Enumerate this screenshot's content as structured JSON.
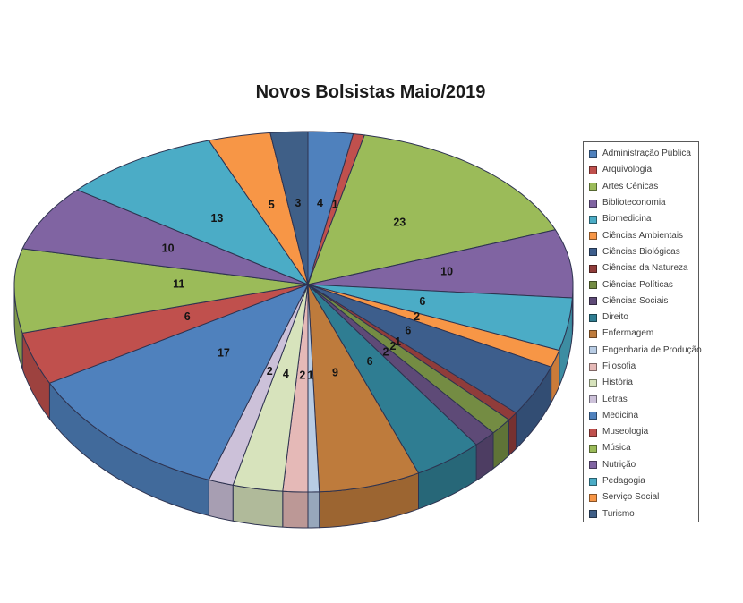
{
  "title": "Novos Bolsistas Maio/2019",
  "chart_data": {
    "type": "pie",
    "style": "3d-pie",
    "title": "Novos Bolsistas Maio/2019",
    "total": 146,
    "start_angle_deg": 0,
    "direction": "clockwise",
    "data_labels": "values",
    "legend_position": "right",
    "categories": [
      "Administração Pública",
      "Arquivologia",
      "Artes Cênicas",
      "Biblioteconomia",
      "Biomedicina",
      "Ciências Ambientais",
      "Ciências Biológicas",
      "Ciências da Natureza",
      "Ciências Políticas",
      "Ciências Sociais",
      "Direito",
      "Enfermagem",
      "Engenharia de Produção",
      "Filosofia",
      "História",
      "Letras",
      "Medicina",
      "Museologia",
      "Música",
      "Nutrição",
      "Pedagogia",
      "Serviço Social",
      "Turismo"
    ],
    "values": [
      4,
      1,
      23,
      10,
      6,
      2,
      6,
      1,
      2,
      2,
      6,
      9,
      1,
      2,
      4,
      2,
      17,
      6,
      11,
      10,
      13,
      5,
      3
    ],
    "colors": [
      "#4F81BD",
      "#C0504D",
      "#9BBB59",
      "#8064A2",
      "#4BACC6",
      "#F79646",
      "#3D5E8C",
      "#903C3A",
      "#748C43",
      "#5E4A77",
      "#2F7D92",
      "#BE7B3C",
      "#B8CCE4",
      "#E5B9B7",
      "#D7E3BC",
      "#CCC1D9",
      "#4F81BD",
      "#C0504D",
      "#9BBB59",
      "#8064A2",
      "#4BACC6",
      "#F79646",
      "#3F5F87"
    ],
    "legend_border_color": "#595959",
    "slice_edge_color": "#2e3350",
    "label_color": "#141414"
  }
}
